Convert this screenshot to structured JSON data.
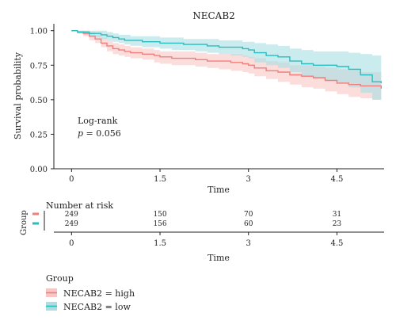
{
  "chart_data": {
    "type": "line",
    "title": "NECAB2",
    "xlabel": "Time",
    "ylabel": "Survival probability",
    "xlim": [
      -0.3,
      5.3
    ],
    "ylim": [
      0,
      1.05
    ],
    "x_ticks": [
      "0",
      "1.5",
      "3",
      "4.5"
    ],
    "x_tick_values": [
      0,
      1.5,
      3,
      4.5
    ],
    "y_ticks": [
      "0.00",
      "0.25",
      "0.50",
      "0.75",
      "1.00"
    ],
    "y_tick_values": [
      0,
      0.25,
      0.5,
      0.75,
      1.0
    ],
    "annotation": {
      "line1": "Log-rank",
      "p_label": "p",
      "p_rest": " = 0.056",
      "x": 0.3,
      "y": 0.42
    },
    "grid": false,
    "series": [
      {
        "name": "NECAB2 = high",
        "color": "#f27e7b",
        "fill": "#f8c6c5",
        "x": [
          0,
          0.1,
          0.2,
          0.3,
          0.4,
          0.5,
          0.6,
          0.7,
          0.8,
          0.9,
          1.0,
          1.2,
          1.4,
          1.5,
          1.7,
          1.9,
          2.1,
          2.3,
          2.5,
          2.7,
          2.9,
          3.0,
          3.1,
          3.3,
          3.5,
          3.7,
          3.9,
          4.1,
          4.3,
          4.5,
          4.7,
          4.9,
          5.1,
          5.25
        ],
        "values": [
          1.0,
          0.99,
          0.98,
          0.96,
          0.94,
          0.91,
          0.89,
          0.87,
          0.86,
          0.85,
          0.84,
          0.83,
          0.82,
          0.81,
          0.8,
          0.8,
          0.79,
          0.78,
          0.78,
          0.77,
          0.76,
          0.75,
          0.73,
          0.71,
          0.7,
          0.68,
          0.67,
          0.66,
          0.64,
          0.62,
          0.61,
          0.6,
          0.6,
          0.58
        ],
        "lower": [
          1.0,
          0.98,
          0.96,
          0.93,
          0.91,
          0.88,
          0.85,
          0.83,
          0.82,
          0.81,
          0.8,
          0.79,
          0.77,
          0.76,
          0.75,
          0.75,
          0.74,
          0.73,
          0.72,
          0.71,
          0.7,
          0.69,
          0.67,
          0.65,
          0.63,
          0.61,
          0.59,
          0.58,
          0.56,
          0.54,
          0.52,
          0.51,
          0.5,
          0.48
        ],
        "upper": [
          1.0,
          1.0,
          1.0,
          0.99,
          0.97,
          0.95,
          0.93,
          0.91,
          0.9,
          0.89,
          0.88,
          0.87,
          0.86,
          0.85,
          0.85,
          0.85,
          0.84,
          0.83,
          0.83,
          0.83,
          0.82,
          0.81,
          0.8,
          0.78,
          0.77,
          0.75,
          0.75,
          0.74,
          0.73,
          0.72,
          0.71,
          0.7,
          0.7,
          0.69
        ]
      },
      {
        "name": "NECAB2 = low",
        "color": "#2bbcbf",
        "fill": "#a9dfe2",
        "x": [
          0,
          0.1,
          0.2,
          0.3,
          0.4,
          0.5,
          0.6,
          0.7,
          0.8,
          0.9,
          1.0,
          1.2,
          1.4,
          1.5,
          1.7,
          1.9,
          2.1,
          2.3,
          2.5,
          2.7,
          2.9,
          3.0,
          3.1,
          3.3,
          3.5,
          3.7,
          3.9,
          4.1,
          4.3,
          4.5,
          4.7,
          4.9,
          5.1,
          5.25
        ],
        "values": [
          1.0,
          0.99,
          0.99,
          0.98,
          0.98,
          0.97,
          0.96,
          0.95,
          0.94,
          0.93,
          0.93,
          0.92,
          0.92,
          0.91,
          0.91,
          0.9,
          0.9,
          0.89,
          0.88,
          0.88,
          0.87,
          0.86,
          0.84,
          0.82,
          0.81,
          0.78,
          0.76,
          0.75,
          0.75,
          0.74,
          0.72,
          0.68,
          0.63,
          0.62
        ],
        "lower": [
          1.0,
          0.98,
          0.97,
          0.96,
          0.95,
          0.94,
          0.93,
          0.92,
          0.91,
          0.9,
          0.89,
          0.88,
          0.88,
          0.87,
          0.86,
          0.86,
          0.85,
          0.84,
          0.83,
          0.82,
          0.81,
          0.8,
          0.77,
          0.75,
          0.73,
          0.7,
          0.67,
          0.65,
          0.64,
          0.62,
          0.59,
          0.55,
          0.5,
          0.48
        ],
        "upper": [
          1.0,
          1.0,
          1.0,
          1.0,
          1.0,
          1.0,
          0.99,
          0.98,
          0.97,
          0.97,
          0.96,
          0.96,
          0.96,
          0.95,
          0.95,
          0.94,
          0.94,
          0.94,
          0.93,
          0.93,
          0.92,
          0.92,
          0.91,
          0.9,
          0.89,
          0.87,
          0.86,
          0.85,
          0.85,
          0.85,
          0.84,
          0.83,
          0.82,
          0.82
        ]
      }
    ]
  },
  "risk_table": {
    "title": "Number at risk",
    "ylabel": "Group",
    "xlabel": "Time",
    "x_ticks": [
      "0",
      "1.5",
      "3",
      "4.5"
    ],
    "x_tick_values": [
      0,
      1.5,
      3,
      4.5
    ],
    "rows": [
      {
        "color": "#f27e7b",
        "counts": [
          "249",
          "150",
          "70",
          "31"
        ]
      },
      {
        "color": "#2bbcbf",
        "counts": [
          "249",
          "156",
          "60",
          "23"
        ]
      }
    ]
  },
  "legend": {
    "title": "Group",
    "items": [
      {
        "label": "NECAB2 = high",
        "color": "#f27e7b",
        "fill": "#f8c6c5"
      },
      {
        "label": "NECAB2 = low",
        "color": "#2bbcbf",
        "fill": "#a9dfe2"
      }
    ]
  }
}
